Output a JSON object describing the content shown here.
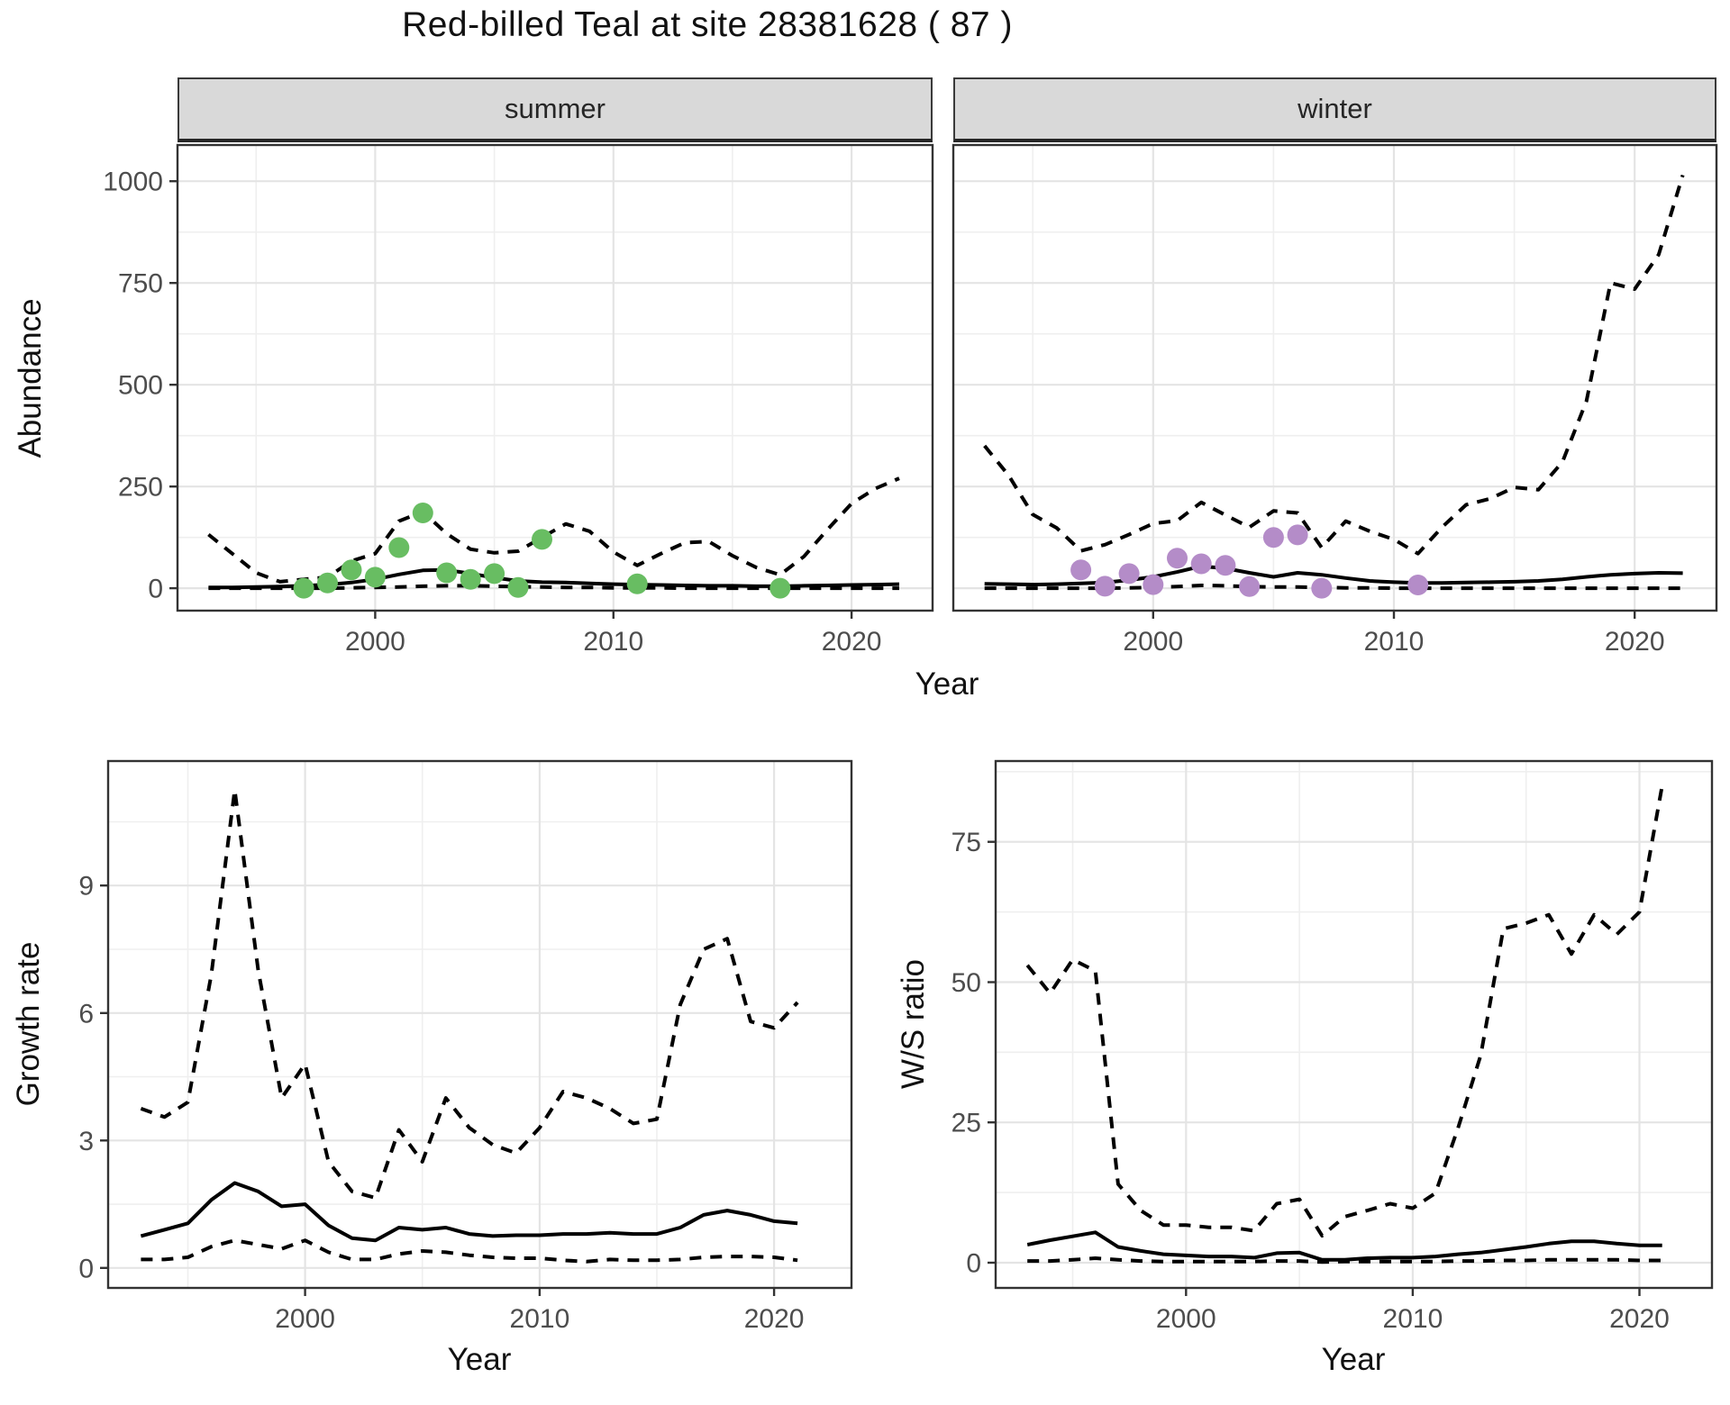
{
  "title": "Red-billed Teal at site 28381628 ( 87 )",
  "labels": {
    "y_abundance": "Abundance",
    "x_top": "Year",
    "y_growth": "Growth rate",
    "x_growth": "Year",
    "y_ws": "W/S ratio",
    "x_ws": "Year"
  },
  "colors": {
    "summer_points": "#68bd62",
    "winter_points": "#b48cc8",
    "line": "#000000",
    "strip_bg": "#d9d9d9",
    "panel_border": "#333333",
    "grid_major": "#e4e4e4",
    "grid_minor": "#efefef",
    "tick_text": "#4d4d4d",
    "title_text": "#111111"
  },
  "chart_data": [
    {
      "id": "abundance_summer",
      "type": "line",
      "facet_label": "summer",
      "xlabel": "Year",
      "ylabel": "Abundance",
      "xticks": [
        2000,
        2010,
        2020
      ],
      "yticks": [
        0,
        250,
        500,
        750,
        1000
      ],
      "xlim": [
        1991.7,
        2023.4
      ],
      "ylim": [
        -55,
        1089
      ],
      "grid": true,
      "legend": "none",
      "x_years": [
        1993,
        1994,
        1995,
        1996,
        1997,
        1998,
        1999,
        2000,
        2001,
        2002,
        2003,
        2004,
        2005,
        2006,
        2007,
        2008,
        2009,
        2010,
        2011,
        2012,
        2013,
        2014,
        2015,
        2016,
        2017,
        2018,
        2019,
        2020,
        2021,
        2022
      ],
      "series": [
        {
          "name": "upper_95ci",
          "style": "dashed",
          "values": [
            132,
            85,
            38,
            16,
            22,
            27,
            67,
            85,
            165,
            188,
            134,
            96,
            87,
            91,
            125,
            158,
            140,
            89,
            56,
            85,
            112,
            115,
            80,
            51,
            33,
            78,
            145,
            208,
            245,
            270
          ]
        },
        {
          "name": "median_fit",
          "style": "solid",
          "values": [
            2,
            2,
            3,
            4,
            6,
            9,
            14,
            22,
            34,
            44,
            45,
            36,
            26,
            18,
            15,
            14,
            12,
            10,
            9,
            8,
            7,
            6,
            6,
            5,
            5,
            6,
            7,
            8,
            9,
            10
          ]
        },
        {
          "name": "lower_95ci",
          "style": "dashed",
          "values": [
            0,
            0,
            0,
            0,
            0,
            0,
            1,
            2,
            3,
            5,
            6,
            6,
            5,
            4,
            3,
            2,
            2,
            1,
            1,
            1,
            0,
            0,
            0,
            0,
            0,
            0,
            0,
            0,
            0,
            0
          ]
        }
      ],
      "points": {
        "name": "observed_counts_summer",
        "color_key": "summer_points",
        "years": [
          1997,
          1998,
          1999,
          2000,
          2001,
          2002,
          2003,
          2004,
          2005,
          2006,
          2007,
          2011,
          2017
        ],
        "values": [
          0,
          13,
          45,
          27,
          100,
          185,
          38,
          22,
          36,
          2,
          120,
          11,
          0
        ]
      }
    },
    {
      "id": "abundance_winter",
      "type": "line",
      "facet_label": "winter",
      "xlabel": "Year",
      "ylabel": "Abundance",
      "xticks": [
        2000,
        2010,
        2020
      ],
      "yticks": [
        0,
        250,
        500,
        750,
        1000
      ],
      "xlim": [
        1991.7,
        2023.4
      ],
      "ylim": [
        -55,
        1089
      ],
      "grid": true,
      "legend": "none",
      "x_years": [
        1993,
        1994,
        1995,
        1996,
        1997,
        1998,
        1999,
        2000,
        2001,
        2002,
        2003,
        2004,
        2005,
        2006,
        2007,
        2008,
        2009,
        2010,
        2011,
        2012,
        2013,
        2014,
        2015,
        2016,
        2017,
        2018,
        2019,
        2020,
        2021,
        2022
      ],
      "series": [
        {
          "name": "upper_95ci",
          "style": "dashed",
          "values": [
            350,
            277,
            181,
            148,
            92,
            107,
            132,
            159,
            166,
            211,
            180,
            150,
            190,
            185,
            100,
            165,
            140,
            120,
            85,
            150,
            205,
            220,
            248,
            242,
            310,
            460,
            750,
            735,
            820,
            1015
          ]
        },
        {
          "name": "median_fit",
          "style": "solid",
          "values": [
            11,
            10,
            9,
            10,
            12,
            14,
            20,
            28,
            40,
            54,
            49,
            38,
            28,
            38,
            33,
            25,
            18,
            15,
            13,
            13,
            14,
            15,
            16,
            18,
            22,
            28,
            33,
            36,
            38,
            37
          ]
        },
        {
          "name": "lower_95ci",
          "style": "dashed",
          "values": [
            0,
            0,
            0,
            0,
            0,
            0,
            1,
            2,
            4,
            7,
            6,
            4,
            3,
            3,
            2,
            1,
            1,
            0,
            0,
            0,
            0,
            0,
            0,
            0,
            0,
            0,
            0,
            0,
            0,
            0
          ]
        }
      ],
      "points": {
        "name": "observed_counts_winter",
        "color_key": "winter_points",
        "years": [
          1997,
          1998,
          1999,
          2000,
          2001,
          2002,
          2003,
          2004,
          2005,
          2006,
          2007,
          2011
        ],
        "values": [
          45,
          5,
          36,
          9,
          74,
          60,
          56,
          4,
          125,
          131,
          0,
          8
        ]
      }
    },
    {
      "id": "growth_rate",
      "type": "line",
      "facet_label": "",
      "xlabel": "Year",
      "ylabel": "Growth rate",
      "xticks": [
        2000,
        2010,
        2020
      ],
      "yticks": [
        0,
        3,
        6,
        9
      ],
      "xlim": [
        1991.6,
        2023.3
      ],
      "ylim": [
        -0.47,
        11.93
      ],
      "grid": true,
      "legend": "none",
      "x_years": [
        1993,
        1994,
        1995,
        1996,
        1997,
        1998,
        1999,
        2000,
        2001,
        2002,
        2003,
        2004,
        2005,
        2006,
        2007,
        2008,
        2009,
        2010,
        2011,
        2012,
        2013,
        2014,
        2015,
        2016,
        2017,
        2018,
        2019,
        2020,
        2021
      ],
      "series": [
        {
          "name": "upper_95ci",
          "style": "dashed",
          "values": [
            3.75,
            3.55,
            3.9,
            6.9,
            11.25,
            7.0,
            4.0,
            4.8,
            2.5,
            1.8,
            1.65,
            3.25,
            2.5,
            4.0,
            3.3,
            2.9,
            2.7,
            3.3,
            4.15,
            4.0,
            3.75,
            3.4,
            3.5,
            6.2,
            7.5,
            7.75,
            5.8,
            5.65,
            6.25
          ]
        },
        {
          "name": "median_fit",
          "style": "solid",
          "values": [
            0.75,
            0.9,
            1.05,
            1.6,
            2.0,
            1.8,
            1.45,
            1.5,
            1.0,
            0.7,
            0.65,
            0.95,
            0.9,
            0.95,
            0.8,
            0.75,
            0.77,
            0.77,
            0.8,
            0.8,
            0.83,
            0.8,
            0.8,
            0.95,
            1.25,
            1.35,
            1.25,
            1.1,
            1.05
          ]
        },
        {
          "name": "lower_95ci",
          "style": "dashed",
          "values": [
            0.2,
            0.2,
            0.25,
            0.5,
            0.65,
            0.55,
            0.45,
            0.65,
            0.37,
            0.2,
            0.2,
            0.33,
            0.4,
            0.37,
            0.3,
            0.25,
            0.23,
            0.23,
            0.18,
            0.15,
            0.2,
            0.18,
            0.18,
            0.2,
            0.25,
            0.27,
            0.27,
            0.25,
            0.18
          ]
        }
      ],
      "points": null
    },
    {
      "id": "ws_ratio",
      "type": "line",
      "facet_label": "",
      "xlabel": "Year",
      "ylabel": "W/S ratio",
      "xticks": [
        2000,
        2010,
        2020
      ],
      "yticks": [
        0,
        25,
        50,
        75
      ],
      "xlim": [
        1991.6,
        2023.2
      ],
      "ylim": [
        -4.5,
        89.4
      ],
      "grid": true,
      "legend": "none",
      "x_years": [
        1993,
        1994,
        1995,
        1996,
        1997,
        1998,
        1999,
        2000,
        2001,
        2002,
        2003,
        2004,
        2005,
        2006,
        2007,
        2008,
        2009,
        2010,
        2011,
        2012,
        2013,
        2014,
        2015,
        2016,
        2017,
        2018,
        2019,
        2020,
        2021
      ],
      "series": [
        {
          "name": "upper_95ci",
          "style": "dashed",
          "values": [
            53,
            48,
            54,
            52,
            14,
            9.3,
            6.7,
            6.7,
            6.3,
            6.3,
            5.7,
            10.5,
            11.3,
            4.8,
            8.2,
            9.3,
            10.5,
            9.7,
            12.4,
            24,
            37,
            59.5,
            60.5,
            62,
            55,
            62,
            58.5,
            62.5,
            85
          ]
        },
        {
          "name": "median_fit",
          "style": "solid",
          "values": [
            3.2,
            4.0,
            4.7,
            5.4,
            2.8,
            2.1,
            1.5,
            1.3,
            1.1,
            1.1,
            0.9,
            1.7,
            1.8,
            0.5,
            0.5,
            0.8,
            0.9,
            0.9,
            1.1,
            1.5,
            1.8,
            2.3,
            2.8,
            3.4,
            3.8,
            3.8,
            3.4,
            3.1,
            3.1
          ]
        },
        {
          "name": "lower_95ci",
          "style": "dashed",
          "values": [
            0.3,
            0.3,
            0.5,
            0.8,
            0.5,
            0.3,
            0.2,
            0.2,
            0.2,
            0.2,
            0.2,
            0.3,
            0.3,
            0.1,
            0.2,
            0.2,
            0.2,
            0.2,
            0.2,
            0.3,
            0.3,
            0.4,
            0.4,
            0.5,
            0.5,
            0.5,
            0.5,
            0.4,
            0.4
          ]
        }
      ],
      "points": null
    }
  ]
}
